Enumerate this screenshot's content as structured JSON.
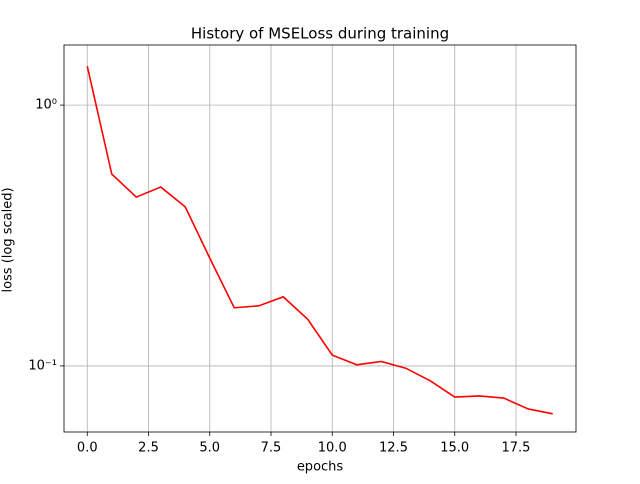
{
  "chart_data": {
    "type": "line",
    "title": "History of MSELoss during training",
    "x_label": "epochs",
    "y_label": "loss (log scaled)",
    "x": [
      0,
      1,
      2,
      3,
      4,
      5,
      6,
      7,
      8,
      9,
      10,
      11,
      12,
      13,
      14,
      15,
      16,
      17,
      18,
      19
    ],
    "series": [
      {
        "color": "#ff0000",
        "values": [
          1.41,
          0.544,
          0.444,
          0.485,
          0.407,
          0.259,
          0.167,
          0.17,
          0.184,
          0.151,
          0.11,
          0.101,
          0.104,
          0.098,
          0.0877,
          0.076,
          0.0767,
          0.0753,
          0.0684,
          0.0655
        ]
      }
    ],
    "xlim": [
      -0.95,
      19.95
    ],
    "xticks": [
      {
        "value": 0,
        "label": "0.0"
      },
      2.5,
      {
        "value": 5,
        "label": "5.0"
      },
      7.5,
      {
        "value": 10,
        "label": "10.0"
      },
      12.5,
      {
        "value": 15,
        "label": "15.0"
      },
      17.5
    ],
    "ylim": [
      0.0558,
      1.7
    ],
    "y_log": true,
    "yticks": [
      {
        "value": 0.1,
        "label": "10⁻¹"
      },
      {
        "value": 1,
        "label": "10⁰"
      }
    ],
    "grid": true
  }
}
